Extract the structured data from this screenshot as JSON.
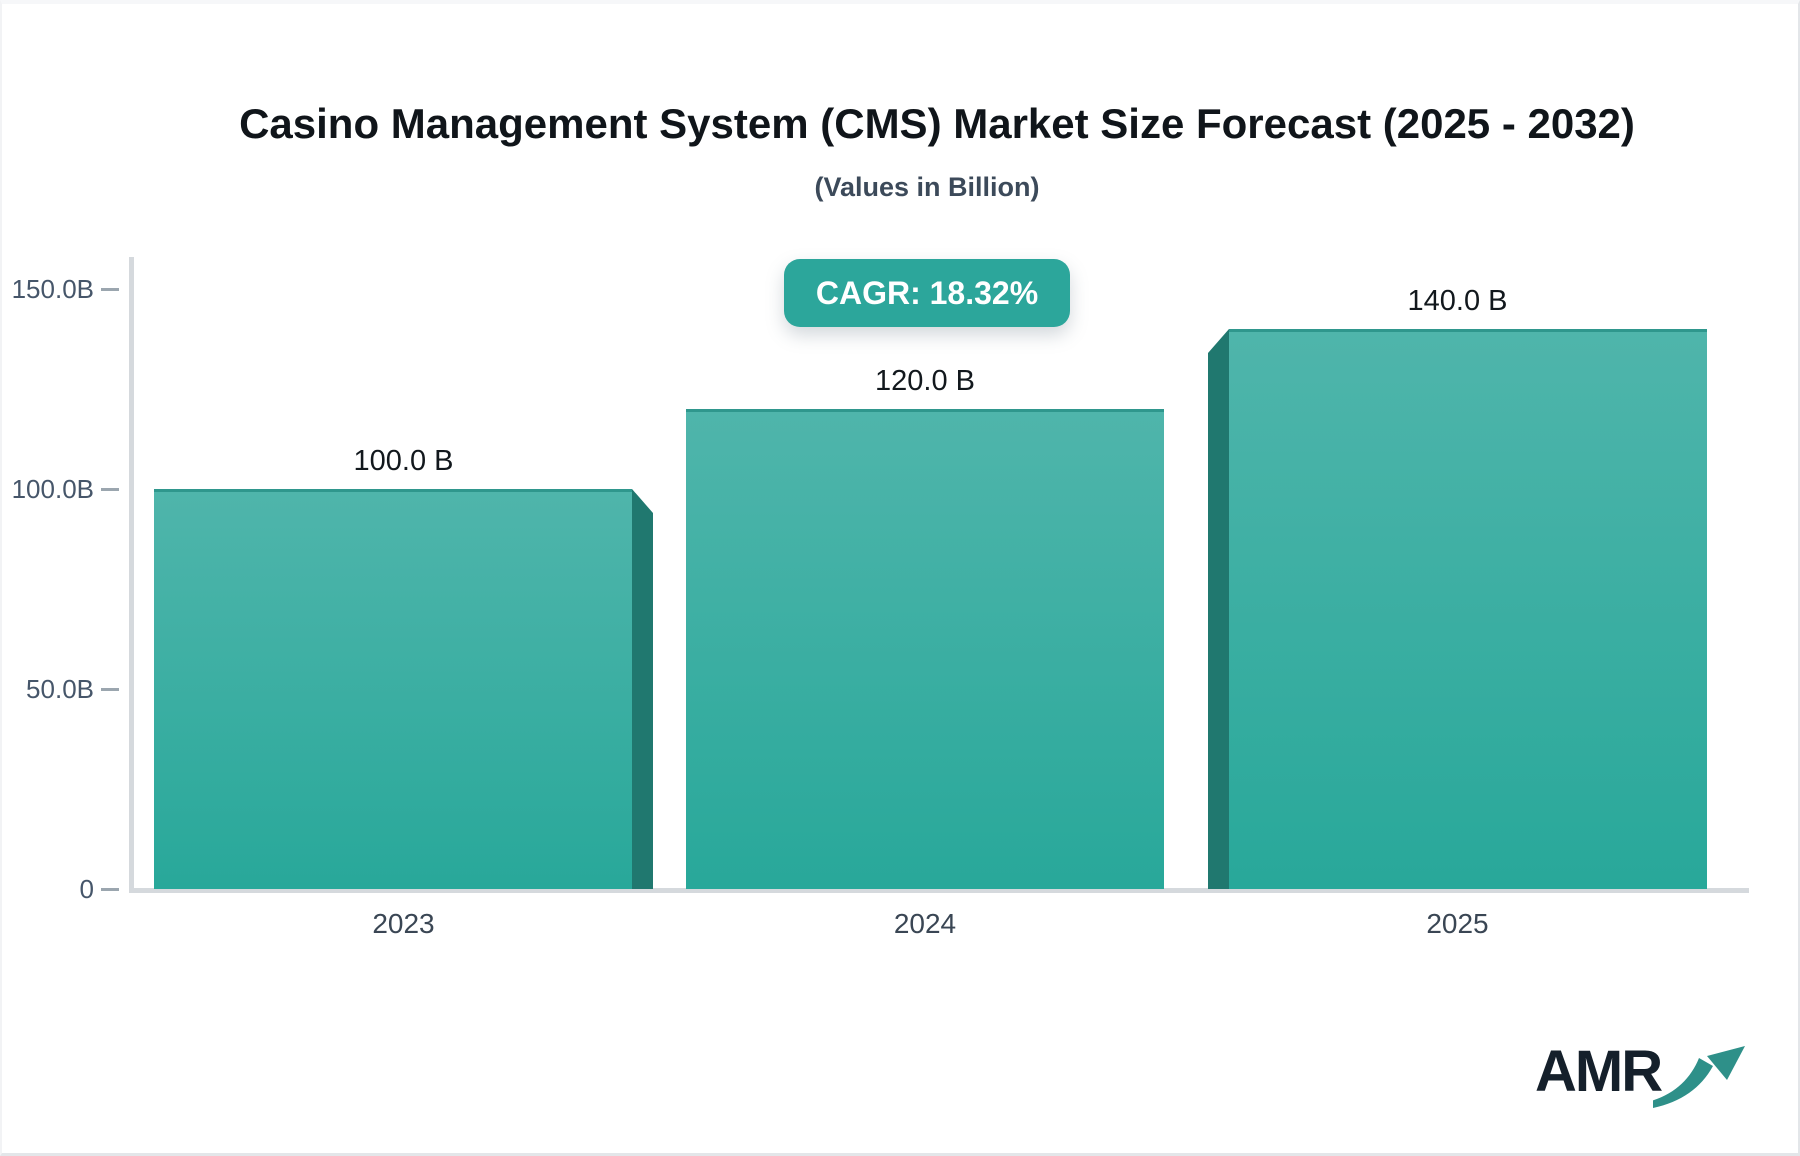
{
  "header": {
    "title": "Casino Management System (CMS) Market Size Forecast (2025 - 2032)",
    "subtitle": "(Values in Billion)"
  },
  "badge": {
    "label": "CAGR: 18.32%",
    "color": "#2ca69b"
  },
  "chart_data": {
    "type": "bar",
    "title": "Casino Management System (CMS) Market Size Forecast (2025 - 2032)",
    "subtitle": "(Values in Billion)",
    "categories": [
      "2023",
      "2024",
      "2025"
    ],
    "values": [
      100.0,
      120.0,
      140.0
    ],
    "value_labels": [
      "100.0 B",
      "120.0 B",
      "140.0 B"
    ],
    "ylim": [
      0,
      150
    ],
    "y_ticks": [
      {
        "value": 150,
        "label": "150.0B"
      },
      {
        "value": 100,
        "label": "100.0B"
      },
      {
        "value": 50,
        "label": "50.0B"
      },
      {
        "value": 0,
        "label": "0"
      }
    ],
    "grid": false,
    "legend": false,
    "annotation": "CAGR: 18.32%",
    "colors": {
      "bar_top": "#4fb5ab",
      "bar_bottom": "#28a89a",
      "bar_side": "#20786f",
      "bar_border": "#2f978d",
      "axis": "#d5d9dd",
      "tick": "#9ba6af"
    }
  },
  "logo": {
    "text": "AMR"
  }
}
